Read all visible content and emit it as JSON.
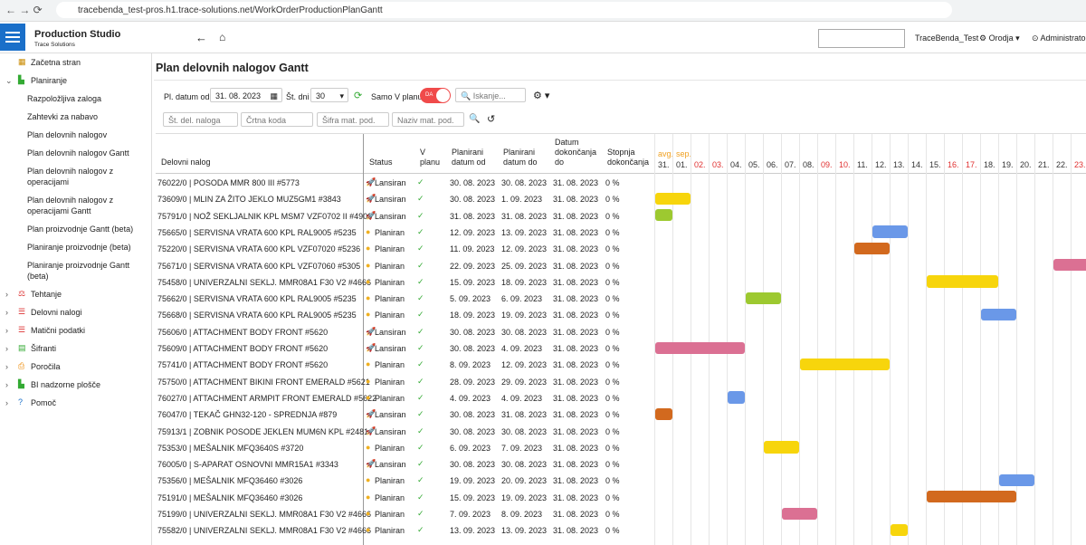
{
  "browser": {
    "url": "tracebenda_test-pros.h1.trace-solutions.net/WorkOrderProductionPlanGantt"
  },
  "header": {
    "app": "Production Studio",
    "company": "Trace Solutions",
    "user": "TraceBenda_Test",
    "tools": "Orodja",
    "admin": "Administrator"
  },
  "sidebar": {
    "items": [
      {
        "label": "Začetna stran",
        "level": 0,
        "icon": "grid"
      },
      {
        "label": "Planiranje",
        "level": 0,
        "icon": "chart",
        "open": true
      },
      {
        "label": "Razpoložljiva zaloga",
        "level": 1
      },
      {
        "label": "Zahtevki za nabavo",
        "level": 1
      },
      {
        "label": "Plan delovnih nalogov",
        "level": 1
      },
      {
        "label": "Plan delovnih nalogov Gantt",
        "level": 1
      },
      {
        "label": "Plan delovnih nalogov z operacijami",
        "level": 1
      },
      {
        "label": "Plan delovnih nalogov z operacijami Gantt",
        "level": 1
      },
      {
        "label": "Plan proizvodnje Gantt (beta)",
        "level": 1
      },
      {
        "label": "Planiranje proizvodnje (beta)",
        "level": 1
      },
      {
        "label": "Planiranje proizvodnje Gantt (beta)",
        "level": 1
      },
      {
        "label": "Tehtanje",
        "level": 0,
        "icon": "scale"
      },
      {
        "label": "Delovni nalogi",
        "level": 0,
        "icon": "list"
      },
      {
        "label": "Matični podatki",
        "level": 0,
        "icon": "list"
      },
      {
        "label": "Šifranti",
        "level": 0,
        "icon": "table"
      },
      {
        "label": "Poročila",
        "level": 0,
        "icon": "print"
      },
      {
        "label": "BI nadzorne plošče",
        "level": 0,
        "icon": "chart"
      },
      {
        "label": "Pomoč",
        "level": 0,
        "icon": "help"
      }
    ]
  },
  "page": {
    "title": "Plan delovnih nalogov Gantt"
  },
  "filters": {
    "date_label": "Pl. datum od",
    "date": "31. 08. 2023",
    "days_label": "Št. dni",
    "days": "30",
    "only_plan": "Samo V planu",
    "toggle": "DA",
    "search": "Iskanje...",
    "order": "Št. del. naloga",
    "barcode": "Črtna koda",
    "material_code": "Šifra mat. pod.",
    "material_name": "Naziv mat. pod."
  },
  "table": {
    "headers": [
      "Delovni nalog",
      "Status",
      "V planu",
      "Planirani datum od",
      "Planirani datum do",
      "Datum dokončanja do",
      "Stopnja dokončanja"
    ],
    "days": [
      {
        "day": "31.",
        "month": "avg."
      },
      {
        "day": "01.",
        "month": "sep."
      },
      {
        "day": "02.",
        "weekend": true
      },
      {
        "day": "03.",
        "weekend": true
      },
      {
        "day": "04."
      },
      {
        "day": "05."
      },
      {
        "day": "06."
      },
      {
        "day": "07."
      },
      {
        "day": "08."
      },
      {
        "day": "09.",
        "weekend": true
      },
      {
        "day": "10.",
        "weekend": true
      },
      {
        "day": "11."
      },
      {
        "day": "12."
      },
      {
        "day": "13."
      },
      {
        "day": "14."
      },
      {
        "day": "15."
      },
      {
        "day": "16.",
        "weekend": true
      },
      {
        "day": "17.",
        "weekend": true
      },
      {
        "day": "18."
      },
      {
        "day": "19."
      },
      {
        "day": "20."
      },
      {
        "day": "21."
      },
      {
        "day": "22."
      },
      {
        "day": "23.",
        "weekend": true
      }
    ],
    "rows": [
      {
        "order": "76022/0 | POSODA MMR 800 III #5773",
        "status": "Lansiran",
        "launched": true,
        "from": "30. 08. 2023",
        "to": "30. 08. 2023",
        "due": "31. 08. 2023",
        "progress": "0 %",
        "selected": true
      },
      {
        "order": "73609/0 | MLIN ZA ŽITO JEKLO MUZ5GM1 #3843",
        "status": "Lansiran",
        "launched": true,
        "from": "30. 08. 2023",
        "to": "1. 09. 2023",
        "due": "31. 08. 2023",
        "progress": "0 %",
        "bar_color": "#f7d50c"
      },
      {
        "order": "75791/0 | NOŽ SEKLJALNIK KPL MSM7 VZF0702 II #4903",
        "status": "Lansiran",
        "launched": true,
        "from": "31. 08. 2023",
        "to": "31. 08. 2023",
        "due": "31. 08. 2023",
        "progress": "0 %",
        "bar_color": "#9dc930"
      },
      {
        "order": "75665/0 | SERVISNA VRATA 600 KPL RAL9005 #5235",
        "status": "Planiran",
        "from": "12. 09. 2023",
        "to": "13. 09. 2023",
        "due": "31. 08. 2023",
        "progress": "0 %",
        "bar_color": "#6a98e8"
      },
      {
        "order": "75220/0 | SERVISNA VRATA 600 KPL VZF07020 #5236",
        "status": "Planiran",
        "from": "11. 09. 2023",
        "to": "12. 09. 2023",
        "due": "31. 08. 2023",
        "progress": "0 %",
        "bar_color": "#d2691e"
      },
      {
        "order": "75671/0 | SERVISNA VRATA 600 KPL VZF07060 #5305",
        "status": "Planiran",
        "from": "22. 09. 2023",
        "to": "25. 09. 2023",
        "due": "31. 08. 2023",
        "progress": "0 %",
        "bar_color": "#db7093"
      },
      {
        "order": "75458/0 | UNIVERZALNI SEKLJ. MMR08A1 F30 V2 #4666",
        "status": "Planiran",
        "from": "15. 09. 2023",
        "to": "18. 09. 2023",
        "due": "31. 08. 2023",
        "progress": "0 %",
        "bar_color": "#f7d50c"
      },
      {
        "order": "75662/0 | SERVISNA VRATA 600 KPL RAL9005 #5235",
        "status": "Planiran",
        "from": "5. 09. 2023",
        "to": "6. 09. 2023",
        "due": "31. 08. 2023",
        "progress": "0 %",
        "bar_color": "#9dc930"
      },
      {
        "order": "75668/0 | SERVISNA VRATA 600 KPL RAL9005 #5235",
        "status": "Planiran",
        "from": "18. 09. 2023",
        "to": "19. 09. 2023",
        "due": "31. 08. 2023",
        "progress": "0 %",
        "bar_color": "#6a98e8"
      },
      {
        "order": "75606/0 | ATTACHMENT BODY FRONT #5620",
        "status": "Lansiran",
        "launched": true,
        "from": "30. 08. 2023",
        "to": "30. 08. 2023",
        "due": "31. 08. 2023",
        "progress": "0 %"
      },
      {
        "order": "75609/0 | ATTACHMENT BODY FRONT #5620",
        "status": "Lansiran",
        "launched": true,
        "from": "30. 08. 2023",
        "to": "4. 09. 2023",
        "due": "31. 08. 2023",
        "progress": "0 %",
        "bar_color": "#db7093"
      },
      {
        "order": "75741/0 | ATTACHMENT BODY FRONT #5620",
        "status": "Planiran",
        "from": "8. 09. 2023",
        "to": "12. 09. 2023",
        "due": "31. 08. 2023",
        "progress": "0 %",
        "bar_color": "#f7d50c"
      },
      {
        "order": "75750/0 | ATTACHMENT BIKINI FRONT EMERALD #5621",
        "status": "Planiran",
        "from": "28. 09. 2023",
        "to": "29. 09. 2023",
        "due": "31. 08. 2023",
        "progress": "0 %",
        "bar_color": "#6a98e8"
      },
      {
        "order": "76027/0 | ATTACHMENT ARMPIT FRONT EMERALD #5622",
        "status": "Planiran",
        "from": "4. 09. 2023",
        "to": "4. 09. 2023",
        "due": "31. 08. 2023",
        "progress": "0 %",
        "bar_color": "#6a98e8"
      },
      {
        "order": "76047/0 | TEKAČ GHN32-120 - SPREDNJA #879",
        "status": "Lansiran",
        "launched": true,
        "from": "30. 08. 2023",
        "to": "31. 08. 2023",
        "due": "31. 08. 2023",
        "progress": "0 %",
        "bar_color": "#d2691e"
      },
      {
        "order": "75913/1 | ZOBNIK POSODE JEKLEN MUM6N KPL #2481",
        "status": "Lansiran",
        "launched": true,
        "from": "30. 08. 2023",
        "to": "30. 08. 2023",
        "due": "31. 08. 2023",
        "progress": "0 %"
      },
      {
        "order": "75353/0 | MEŠALNIK MFQ3640S #3720",
        "status": "Planiran",
        "from": "6. 09. 2023",
        "to": "7. 09. 2023",
        "due": "31. 08. 2023",
        "progress": "0 %",
        "bar_color": "#f7d50c"
      },
      {
        "order": "76005/0 | S-APARAT OSNOVNI MMR15A1 #3343",
        "status": "Lansiran",
        "launched": true,
        "from": "30. 08. 2023",
        "to": "30. 08. 2023",
        "due": "31. 08. 2023",
        "progress": "0 %"
      },
      {
        "order": "75356/0 | MEŠALNIK MFQ36460 #3026",
        "status": "Planiran",
        "from": "19. 09. 2023",
        "to": "20. 09. 2023",
        "due": "31. 08. 2023",
        "progress": "0 %",
        "bar_color": "#6a98e8"
      },
      {
        "order": "75191/0 | MEŠALNIK MFQ36460 #3026",
        "status": "Planiran",
        "from": "15. 09. 2023",
        "to": "19. 09. 2023",
        "due": "31. 08. 2023",
        "progress": "0 %",
        "bar_color": "#d2691e"
      },
      {
        "order": "75199/0 | UNIVERZALNI SEKLJ. MMR08A1 F30 V2 #4666",
        "status": "Planiran",
        "from": "7. 09. 2023",
        "to": "8. 09. 2023",
        "due": "31. 08. 2023",
        "progress": "0 %",
        "bar_color": "#db7093"
      },
      {
        "order": "75582/0 | UNIVERZALNI SEKLJ. MMR08A1 F30 V2 #4666",
        "status": "Planiran",
        "from": "13. 09. 2023",
        "to": "13. 09. 2023",
        "due": "31. 08. 2023",
        "progress": "0 %",
        "bar_color": "#f7d50c"
      }
    ]
  }
}
